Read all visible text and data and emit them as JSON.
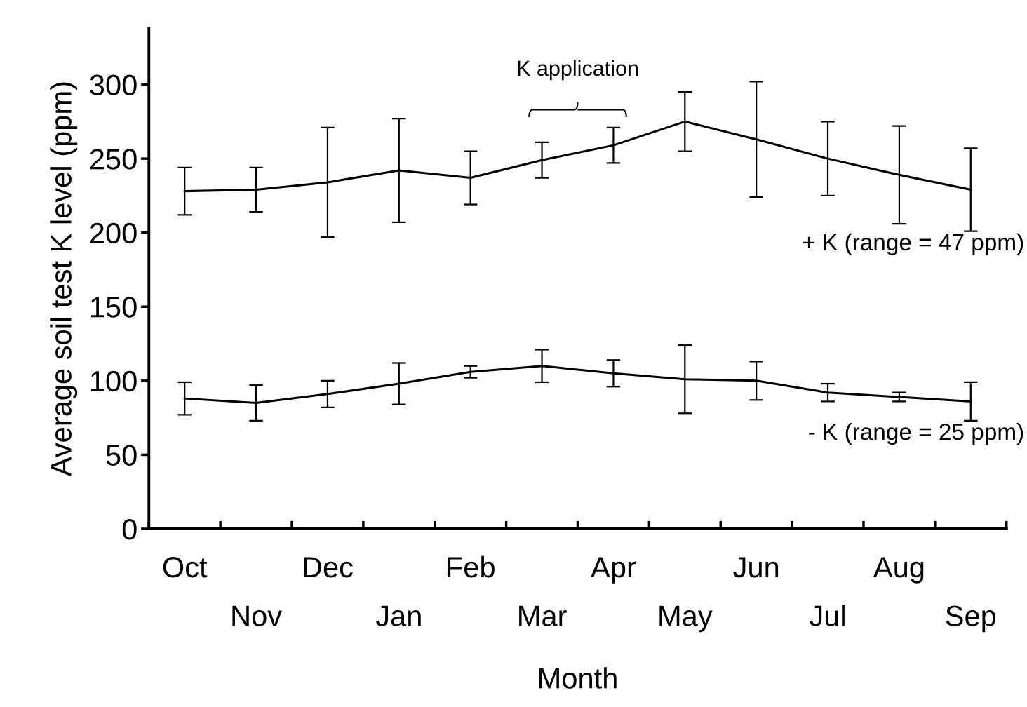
{
  "chart_data": {
    "type": "line",
    "xlabel": "Month",
    "ylabel": "Average soil test K level (ppm)",
    "categories": [
      "Oct",
      "Nov",
      "Dec",
      "Jan",
      "Feb",
      "Mar",
      "Apr",
      "May",
      "Jun",
      "Jul",
      "Aug",
      "Sep"
    ],
    "series": [
      {
        "name": "+ K (range = 47 ppm)",
        "color": "#000000",
        "values": [
          228,
          229,
          234,
          242,
          237,
          249,
          259,
          275,
          263,
          250,
          239,
          229
        ],
        "errors": [
          16,
          15,
          37,
          35,
          18,
          12,
          12,
          20,
          39,
          25,
          33,
          28
        ]
      },
      {
        "name": "- K (range = 25 ppm)",
        "color": "#000000",
        "values": [
          88,
          85,
          91,
          98,
          106,
          110,
          105,
          101,
          100,
          92,
          89,
          86
        ],
        "errors": [
          11,
          12,
          9,
          14,
          4,
          11,
          9,
          23,
          13,
          6,
          3,
          13
        ]
      }
    ],
    "annotations": [
      "K application"
    ],
    "ylim": [
      0,
      338
    ],
    "yticks": [
      0,
      50,
      100,
      150,
      200,
      250,
      300
    ],
    "grid": false,
    "legend": false,
    "marker": "none",
    "line_style": "solid"
  }
}
